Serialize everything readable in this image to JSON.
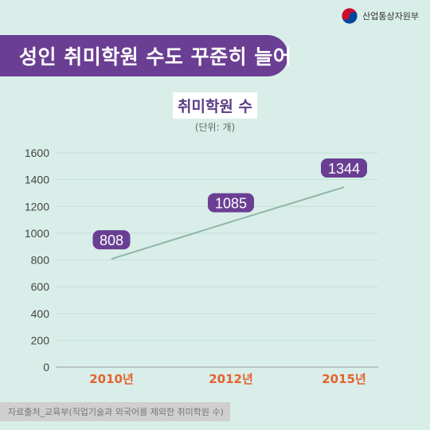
{
  "header": {
    "ministry_name": "산업통상자원부"
  },
  "banner": {
    "title": "성인 취미학원 수도 꾸준히 늘어",
    "icon": "notebook-pencil-icon"
  },
  "chart_data": {
    "type": "line",
    "title": "취미학원 수",
    "unit": "(단위: 개)",
    "categories": [
      "2010년",
      "2012년",
      "2015년"
    ],
    "values": [
      808,
      1085,
      1344
    ],
    "ylim": [
      0,
      1600
    ],
    "yticks": [
      0,
      200,
      400,
      600,
      800,
      1000,
      1200,
      1400,
      1600
    ],
    "grid": true,
    "colors": {
      "line": "#8fb5a9",
      "label_bg": "#6a3f93",
      "label_text": "#ffffff",
      "xtick": "#e5622e",
      "grid": "#c5dfd8"
    }
  },
  "footer": {
    "source": "자료출처_교육부(직업기술과 외국어를 제외한 취미학원 수)"
  }
}
